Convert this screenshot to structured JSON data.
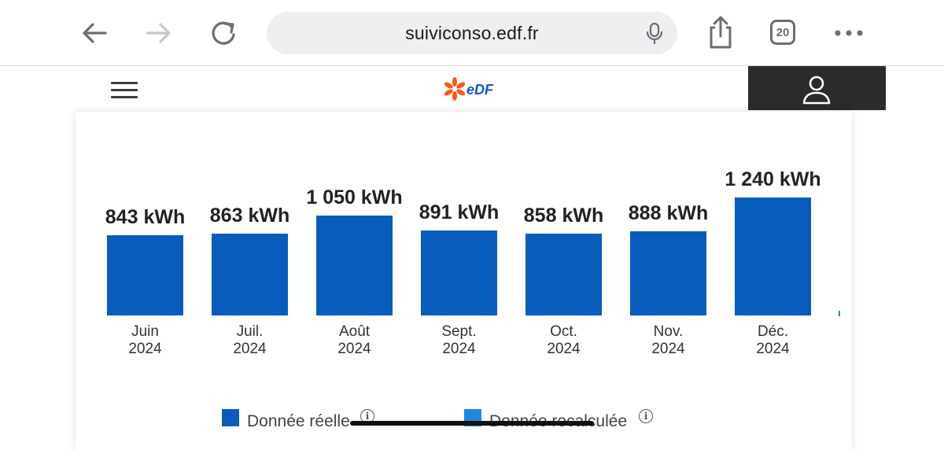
{
  "browser": {
    "url": "suiviconso.edf.fr",
    "tab_count": "20",
    "icons": [
      "back-arrow-icon",
      "forward-arrow-icon",
      "reload-icon",
      "microphone-icon",
      "share-icon",
      "tabs-icon",
      "more-icon"
    ]
  },
  "site": {
    "logo_text": "eDF",
    "icons": [
      "hamburger-menu-icon",
      "edf-logo",
      "account-icon"
    ],
    "colors": {
      "brand_orange": "#fe5716",
      "brand_blue": "#1057c8",
      "header_dark": "#2b2b2b"
    }
  },
  "chart_data": {
    "type": "bar",
    "categories": [
      {
        "month": "Juin",
        "year": "2024"
      },
      {
        "month": "Juil.",
        "year": "2024"
      },
      {
        "month": "Août",
        "year": "2024"
      },
      {
        "month": "Sept.",
        "year": "2024"
      },
      {
        "month": "Oct.",
        "year": "2024"
      },
      {
        "month": "Nov.",
        "year": "2024"
      },
      {
        "month": "Déc.",
        "year": "2024"
      }
    ],
    "values": [
      843,
      863,
      1050,
      891,
      858,
      888,
      1240
    ],
    "value_labels": [
      "843 kWh",
      "863 kWh",
      "1 050 kWh",
      "891 kWh",
      "858 kWh",
      "888 kWh",
      "1 240 kWh"
    ],
    "unit": "kWh",
    "ylim": [
      0,
      1240
    ],
    "bar_color": "#0a5cbc",
    "grid": false,
    "legend": [
      {
        "label": "Donnée réelle",
        "color": "#0a5cbc"
      },
      {
        "label": "Donnée recalculée",
        "color": "#1a8be0"
      }
    ],
    "legend_position": "bottom"
  }
}
